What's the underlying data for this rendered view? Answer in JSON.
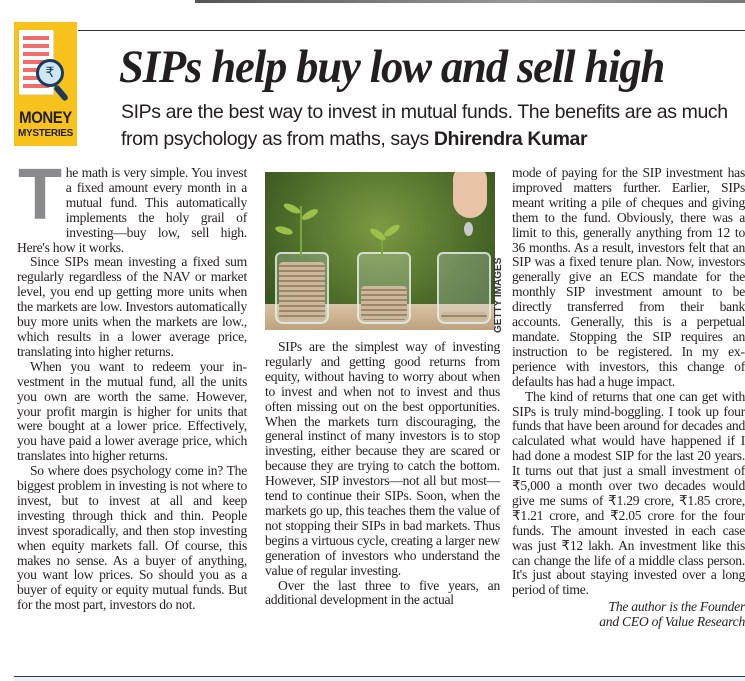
{
  "badge": {
    "line1": "MONEY",
    "line2": "MYSTERIES",
    "rupee_symbol": "₹"
  },
  "headline": "SIPs help buy low and sell high",
  "deck": {
    "text": "SIPs are the best way to invest in mutual funds. The benefits are as much from psychology as from maths, says ",
    "author": "Dhirendra Kumar"
  },
  "photo": {
    "credit": "GETTY IMAGES"
  },
  "column1": {
    "dropcap": "T",
    "paragraphs": [
      "he math is very simple. You invest a fixed amount every month in a mutual fund. This automatically implements the holy grail of investing—buy low, sell high. Here's how it works.",
      "Since SIPs mean investing a fixed sum regularly regardless of the NAV or market level, you end up getting more units when the markets are low. Investors automatically buy more units when the markets are low., which re­sults in a lower average price, translat­ing into higher returns.",
      "When you want to redeem your in­vestment in the mutual fund, all the units you own are worth the same. However, your profit margin is higher for units that were bought at a lower price. Effectively, you have paid a lower average price, which translates into higher returns.",
      "So where does psychology come in? The biggest problem in investing is not where to invest, but to invest at all and keep investing through thick and thin. People invest sporadically, and then stop investing when equity markets fall. Of course, this makes no sense. As a buyer of anything, you want low prices. So should you as a buyer of eq­uity or equity mutual funds. But for the most part, investors do not."
    ]
  },
  "column2": {
    "paragraphs": [
      "SIPs are the simplest way of invest­ing regularly and getting good returns from equity, without having to worry about when to invest and when not to invest and thus often missing out on the best opportunities. When the mar­kets turn discouraging, the general instinct of many investors is to stop investing, either because they are scared or because they are trying to catch the bottom. However, SIP inves­tors—not all but most—tend to con­tinue their SIPs. Soon, when the mar­kets go up, this teaches them the value of not stopping their SIPs in bad mar­kets. Thus begins a virtuous cycle, creating a larger new generation of investors who understand the value of regular investing.",
      "Over the last three to five years, an additional development in the actual"
    ]
  },
  "column3": {
    "paragraphs": [
      "mode of paying for the SIP investment has improved matters further. Earlier, SIPs meant writing a pile of cheques and giving them to the fund. Obviously, there was a limit to this, generally anything from 12 to 36 months. As a result, investors felt that an SIP was a fixed tenure plan. Now, investors gener­ally give an ECS mandate for the monthly SIP investment amount to be directly transferred from their bank accounts. Generally, this is a perpetual mandate. Stopping the SIP requires an instruction to be registered. In my ex­perience with investors, this change of defaults has had a huge impact.",
      "The kind of returns that one can get with SIPs is truly mind-boggling. I took up four funds that have been around for decades and calculated what would have happened if I had done a modest SIP for the last 20 years. It turns out that just a small investment of ₹5,000 a month over two decades would give me sums of ₹1.29 crore, ₹1.85 crore, ₹1.21 crore, and ₹2.05 crore for the four funds. The amount invested in each case was just ₹12 lakh. An investment like this can change the life of a middle class person. It's just about staying invested over a long period of time."
    ],
    "byline": [
      "The author is the Founder",
      "and CEO of Value Research"
    ]
  },
  "colors": {
    "badge_yellow": "#f7c21b",
    "dropcap_gray": "#8a8a8c",
    "text": "#231f20"
  }
}
